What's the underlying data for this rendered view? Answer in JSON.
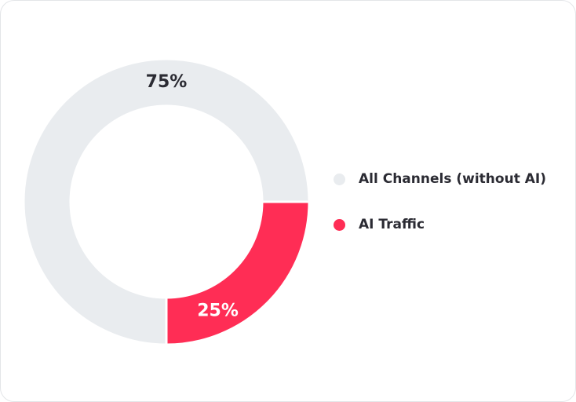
{
  "chart_data": {
    "type": "pie",
    "donut": true,
    "categories": [
      "All Channels (without AI)",
      "AI Traffic"
    ],
    "values": [
      75,
      25
    ],
    "value_labels": [
      "75%",
      "25%"
    ],
    "colors": [
      "#e9ecef",
      "#ff2d55"
    ],
    "label_colors": [
      "#2b2b33",
      "#ffffff"
    ],
    "legend_position": "right"
  }
}
